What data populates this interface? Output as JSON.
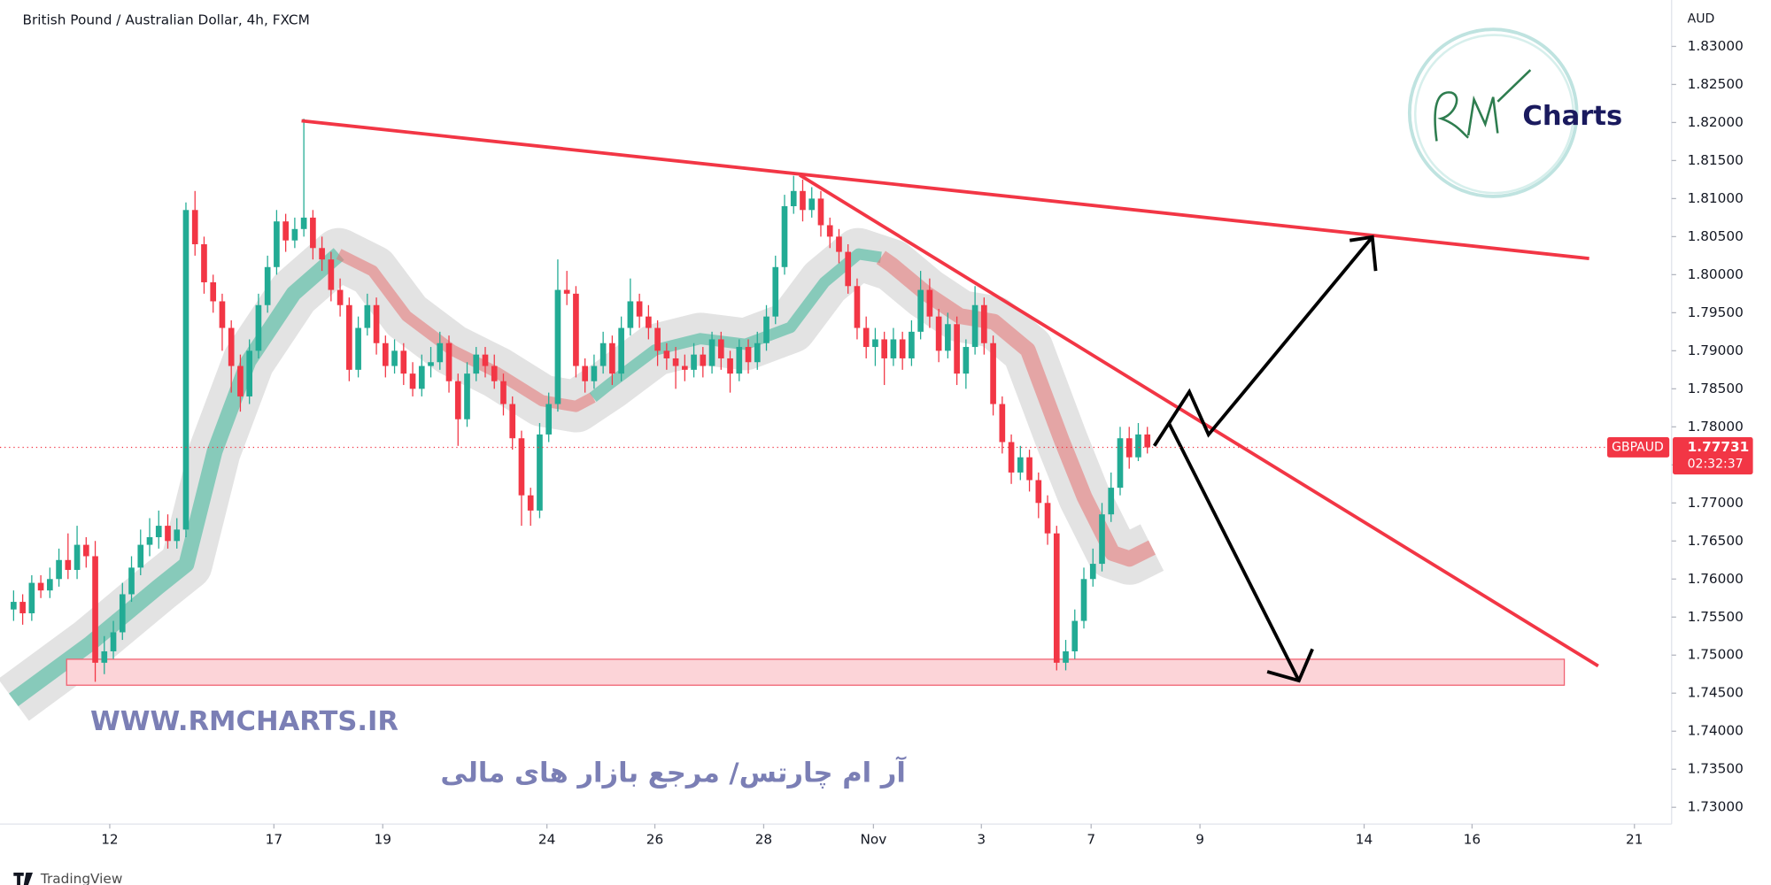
{
  "chart_data": {
    "type": "candlestick",
    "title": "British Pound / Australian Dollar, 4h, FXCM",
    "currency": "AUD",
    "symbol": "GBPAUD",
    "last_price": 1.77731,
    "countdown": "02:32:37",
    "up_color": "#22ab94",
    "down_color": "#f23645",
    "open": [
      1.756,
      1.757,
      1.7555,
      1.7595,
      1.7585,
      1.76,
      1.7625,
      1.7612,
      1.7645,
      1.763,
      1.749,
      1.7505,
      1.753,
      1.758,
      1.7615,
      1.7645,
      1.7655,
      1.767,
      1.765,
      1.7665,
      1.8085,
      1.804,
      1.799,
      1.7965,
      1.793,
      1.788,
      1.784,
      1.79,
      1.796,
      1.801,
      1.807,
      1.8045,
      1.806,
      1.8075,
      1.8035,
      1.802,
      1.798,
      1.796,
      1.7875,
      1.793,
      1.796,
      1.791,
      1.788,
      1.79,
      1.787,
      1.785,
      1.788,
      1.7885,
      1.791,
      1.786,
      1.781,
      1.787,
      1.7895,
      1.788,
      1.786,
      1.783,
      1.7785,
      1.771,
      1.769,
      1.779,
      1.783,
      1.798,
      1.7975,
      1.788,
      1.786,
      1.788,
      1.791,
      1.787,
      1.793,
      1.7965,
      1.7945,
      1.793,
      1.79,
      1.789,
      1.788,
      1.7875,
      1.7895,
      1.788,
      1.7915,
      1.789,
      1.787,
      1.7905,
      1.7885,
      1.791,
      1.7945,
      1.801,
      1.809,
      1.811,
      1.8085,
      1.81,
      1.8065,
      1.805,
      1.803,
      1.7985,
      1.793,
      1.7905,
      1.7915,
      1.789,
      1.7915,
      1.789,
      1.7925,
      1.798,
      1.7945,
      1.79,
      1.7935,
      1.787,
      1.7905,
      1.796,
      1.791,
      1.783,
      1.778,
      1.774,
      1.776,
      1.773,
      1.77,
      1.766,
      1.749,
      1.7505,
      1.7545,
      1.76,
      1.762,
      1.7685,
      1.772,
      1.7785,
      1.776,
      1.779
    ],
    "high": [
      1.7585,
      1.758,
      1.7605,
      1.7605,
      1.7615,
      1.764,
      1.766,
      1.767,
      1.7655,
      1.765,
      1.7525,
      1.7545,
      1.7595,
      1.763,
      1.7665,
      1.768,
      1.769,
      1.7685,
      1.768,
      1.8095,
      1.811,
      1.805,
      1.8,
      1.7975,
      1.794,
      1.7895,
      1.7915,
      1.7975,
      1.8025,
      1.8085,
      1.808,
      1.8075,
      1.8205,
      1.8085,
      1.805,
      1.803,
      1.7995,
      1.797,
      1.7945,
      1.7975,
      1.797,
      1.792,
      1.7915,
      1.791,
      1.7885,
      1.7895,
      1.7905,
      1.7925,
      1.792,
      1.787,
      1.7885,
      1.7905,
      1.7905,
      1.7895,
      1.787,
      1.784,
      1.7795,
      1.772,
      1.7805,
      1.7845,
      1.802,
      1.8005,
      1.7985,
      1.789,
      1.7895,
      1.7925,
      1.792,
      1.7945,
      1.7995,
      1.7975,
      1.796,
      1.794,
      1.791,
      1.7905,
      1.7895,
      1.791,
      1.7905,
      1.7925,
      1.7925,
      1.79,
      1.7915,
      1.7915,
      1.7925,
      1.796,
      1.8025,
      1.8105,
      1.813,
      1.8125,
      1.8115,
      1.811,
      1.8075,
      1.806,
      1.804,
      1.7995,
      1.7945,
      1.793,
      1.7925,
      1.793,
      1.7925,
      1.794,
      1.8005,
      1.7995,
      1.7955,
      1.795,
      1.7945,
      1.7915,
      1.7985,
      1.797,
      1.792,
      1.784,
      1.779,
      1.7775,
      1.777,
      1.774,
      1.771,
      1.767,
      1.752,
      1.756,
      1.7615,
      1.764,
      1.77,
      1.774,
      1.78,
      1.78,
      1.7805,
      1.78
    ],
    "low": [
      1.7545,
      1.754,
      1.7545,
      1.7575,
      1.7575,
      1.759,
      1.76,
      1.76,
      1.7615,
      1.7465,
      1.7475,
      1.7495,
      1.752,
      1.757,
      1.7605,
      1.763,
      1.764,
      1.764,
      1.764,
      1.7655,
      1.8025,
      1.7975,
      1.795,
      1.79,
      1.7845,
      1.782,
      1.783,
      1.789,
      1.795,
      1.8,
      1.803,
      1.8035,
      1.805,
      1.802,
      1.8005,
      1.7965,
      1.7945,
      1.786,
      1.7865,
      1.792,
      1.7895,
      1.7865,
      1.787,
      1.7855,
      1.784,
      1.784,
      1.7865,
      1.7875,
      1.7845,
      1.7775,
      1.78,
      1.786,
      1.7865,
      1.785,
      1.7815,
      1.777,
      1.767,
      1.767,
      1.768,
      1.778,
      1.782,
      1.796,
      1.7865,
      1.7845,
      1.785,
      1.787,
      1.7855,
      1.786,
      1.792,
      1.793,
      1.7915,
      1.788,
      1.7875,
      1.785,
      1.786,
      1.7865,
      1.7865,
      1.787,
      1.7875,
      1.7845,
      1.786,
      1.787,
      1.7875,
      1.79,
      1.7935,
      1.8,
      1.808,
      1.807,
      1.8075,
      1.805,
      1.8035,
      1.8015,
      1.7975,
      1.7915,
      1.789,
      1.788,
      1.7855,
      1.788,
      1.7875,
      1.788,
      1.7915,
      1.793,
      1.7885,
      1.789,
      1.7855,
      1.785,
      1.7895,
      1.7895,
      1.7815,
      1.7765,
      1.7725,
      1.773,
      1.7715,
      1.768,
      1.7645,
      1.748,
      1.748,
      1.7495,
      1.7535,
      1.759,
      1.761,
      1.7675,
      1.771,
      1.7745,
      1.7755,
      1.7765
    ],
    "close": [
      1.757,
      1.7555,
      1.7595,
      1.7585,
      1.76,
      1.7625,
      1.7612,
      1.7645,
      1.763,
      1.749,
      1.7505,
      1.753,
      1.758,
      1.7615,
      1.7645,
      1.7655,
      1.767,
      1.765,
      1.7665,
      1.8085,
      1.804,
      1.799,
      1.7965,
      1.793,
      1.788,
      1.784,
      1.79,
      1.796,
      1.801,
      1.807,
      1.8045,
      1.806,
      1.8075,
      1.8035,
      1.802,
      1.798,
      1.796,
      1.7875,
      1.793,
      1.796,
      1.791,
      1.788,
      1.79,
      1.787,
      1.785,
      1.788,
      1.7885,
      1.791,
      1.786,
      1.781,
      1.787,
      1.7895,
      1.788,
      1.786,
      1.783,
      1.7785,
      1.771,
      1.769,
      1.779,
      1.783,
      1.798,
      1.7975,
      1.788,
      1.786,
      1.788,
      1.791,
      1.787,
      1.793,
      1.7965,
      1.7945,
      1.793,
      1.79,
      1.789,
      1.788,
      1.7875,
      1.7895,
      1.788,
      1.7915,
      1.789,
      1.787,
      1.7905,
      1.7885,
      1.791,
      1.7945,
      1.801,
      1.809,
      1.811,
      1.8085,
      1.81,
      1.8065,
      1.805,
      1.803,
      1.7985,
      1.793,
      1.7905,
      1.7915,
      1.789,
      1.7915,
      1.789,
      1.7925,
      1.798,
      1.7945,
      1.79,
      1.7935,
      1.787,
      1.7905,
      1.796,
      1.791,
      1.783,
      1.778,
      1.774,
      1.776,
      1.773,
      1.77,
      1.766,
      1.749,
      1.7505,
      1.7545,
      1.76,
      1.762,
      1.7685,
      1.772,
      1.7785,
      1.776,
      1.779,
      1.7773
    ],
    "xlim": [
      -1.5,
      182.8
    ],
    "xticks": [
      {
        "value": 10.6,
        "label": "12"
      },
      {
        "value": 28.7,
        "label": "17"
      },
      {
        "value": 40.7,
        "label": "19"
      },
      {
        "value": 58.8,
        "label": "24"
      },
      {
        "value": 70.7,
        "label": "26"
      },
      {
        "value": 82.7,
        "label": "28"
      },
      {
        "value": 94.8,
        "label": "Nov"
      },
      {
        "value": 106.7,
        "label": "3"
      },
      {
        "value": 118.8,
        "label": "7"
      },
      {
        "value": 130.8,
        "label": "9"
      },
      {
        "value": 148.9,
        "label": "14"
      },
      {
        "value": 160.8,
        "label": "16"
      },
      {
        "value": 178.7,
        "label": "21"
      }
    ],
    "ylim": [
      1.7278,
      1.8361
    ],
    "yticks": [
      {
        "value": 1.73,
        "label": "1.73000"
      },
      {
        "value": 1.735,
        "label": "1.73500"
      },
      {
        "value": 1.74,
        "label": "1.74000"
      },
      {
        "value": 1.745,
        "label": "1.74500"
      },
      {
        "value": 1.75,
        "label": "1.75000"
      },
      {
        "value": 1.755,
        "label": "1.75500"
      },
      {
        "value": 1.76,
        "label": "1.76000"
      },
      {
        "value": 1.765,
        "label": "1.76500"
      },
      {
        "value": 1.77,
        "label": "1.77000"
      },
      {
        "value": 1.775,
        "label": "1.77500"
      },
      {
        "value": 1.78,
        "label": "1.78000"
      },
      {
        "value": 1.785,
        "label": "1.78500"
      },
      {
        "value": 1.79,
        "label": "1.79000"
      },
      {
        "value": 1.795,
        "label": "1.79500"
      },
      {
        "value": 1.8,
        "label": "1.80000"
      },
      {
        "value": 1.805,
        "label": "1.80500"
      },
      {
        "value": 1.81,
        "label": "1.81000"
      },
      {
        "value": 1.815,
        "label": "1.81500"
      },
      {
        "value": 1.82,
        "label": "1.82000"
      },
      {
        "value": 1.825,
        "label": "1.82500"
      },
      {
        "value": 1.83,
        "label": "1.83000"
      }
    ]
  },
  "watermark": {
    "url": "WWW.RMCHARTS.IR",
    "tagline": "آر ام چارتس/ مرجع بازار های مالی"
  },
  "logo": {
    "text": "Charts"
  },
  "footer": {
    "brand": "TradingView"
  }
}
